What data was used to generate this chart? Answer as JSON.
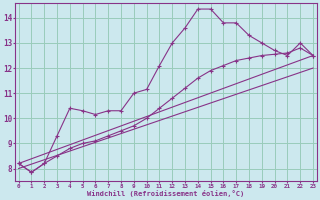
{
  "xlabel": "Windchill (Refroidissement éolien,°C)",
  "ylabel": "",
  "bg_color": "#cce8ee",
  "line_color": "#883388",
  "grid_color": "#99ccbb",
  "x_values": [
    0,
    1,
    2,
    3,
    4,
    5,
    6,
    7,
    8,
    9,
    10,
    11,
    12,
    13,
    14,
    15,
    16,
    17,
    18,
    19,
    20,
    21,
    22,
    23
  ],
  "line1": [
    8.2,
    7.85,
    8.2,
    9.3,
    10.4,
    10.3,
    10.15,
    10.3,
    10.3,
    11.0,
    11.15,
    12.1,
    13.0,
    13.6,
    14.35,
    14.35,
    13.8,
    13.8,
    13.3,
    13.0,
    12.7,
    12.5,
    13.0,
    12.5
  ],
  "line2": [
    8.2,
    7.85,
    8.2,
    8.5,
    8.8,
    9.0,
    9.1,
    9.3,
    9.5,
    9.7,
    10.0,
    10.4,
    10.8,
    11.2,
    11.6,
    11.9,
    12.1,
    12.3,
    12.4,
    12.5,
    12.55,
    12.6,
    12.8,
    12.5
  ],
  "line3_x": [
    0,
    23
  ],
  "line3_y": [
    8.2,
    12.5
  ],
  "line4_x": [
    0,
    23
  ],
  "line4_y": [
    8.0,
    12.0
  ],
  "ylim": [
    7.5,
    14.6
  ],
  "yticks": [
    8,
    9,
    10,
    11,
    12,
    13,
    14
  ],
  "xticks": [
    0,
    1,
    2,
    3,
    4,
    5,
    6,
    7,
    8,
    9,
    10,
    11,
    12,
    13,
    14,
    15,
    16,
    17,
    18,
    19,
    20,
    21,
    22,
    23
  ]
}
